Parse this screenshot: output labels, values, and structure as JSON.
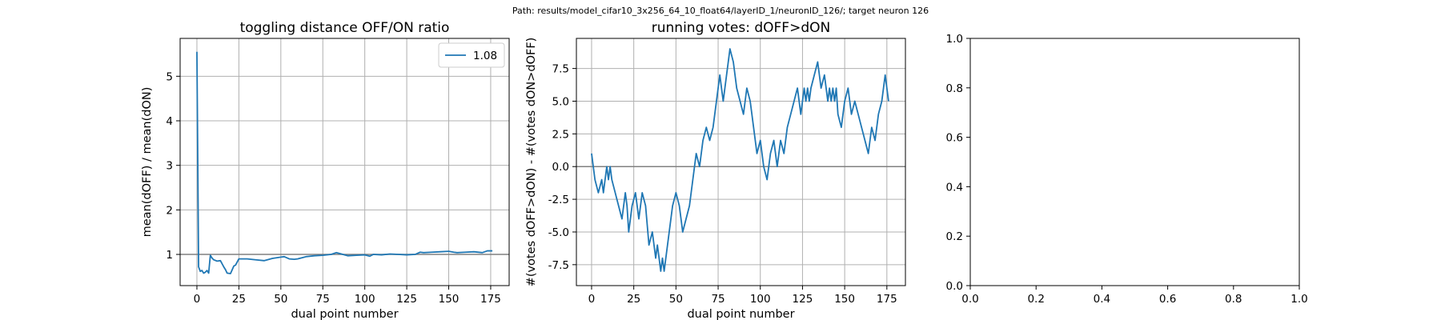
{
  "suptitle": "Path: results/model_cifar10_3x256_64_10_float64/layerID_1/neuronID_126/; target neuron 126",
  "colors": {
    "series": "#1f77b4",
    "refline": "#808080",
    "grid": "#b0b0b0"
  },
  "chart_data": [
    {
      "type": "line",
      "title": "toggling distance OFF/ON ratio",
      "xlabel": "dual point number",
      "ylabel": "mean(dOFF) / mean(dON)",
      "xlim": [
        -10,
        186
      ],
      "ylim": [
        0.3,
        5.85
      ],
      "xticks": [
        0,
        25,
        50,
        75,
        100,
        125,
        150,
        175
      ],
      "yticks": [
        1,
        2,
        3,
        4,
        5
      ],
      "grid": true,
      "legend": {
        "position": "top-right",
        "entries": [
          "1.08"
        ]
      },
      "hline": 1,
      "series": [
        {
          "name": "1.08",
          "x": [
            0,
            1,
            2,
            3,
            4,
            5,
            6,
            7,
            8,
            9,
            10,
            12,
            14,
            16,
            17,
            18,
            20,
            22,
            23,
            25,
            30,
            35,
            40,
            45,
            50,
            52,
            55,
            58,
            60,
            65,
            70,
            75,
            80,
            83,
            85,
            88,
            90,
            95,
            100,
            103,
            105,
            110,
            115,
            120,
            125,
            130,
            133,
            135,
            140,
            145,
            150,
            153,
            155,
            160,
            165,
            170,
            173,
            176
          ],
          "y": [
            5.55,
            0.72,
            0.62,
            0.64,
            0.58,
            0.6,
            0.64,
            0.58,
            0.98,
            0.92,
            0.88,
            0.85,
            0.86,
            0.72,
            0.66,
            0.58,
            0.57,
            0.74,
            0.76,
            0.9,
            0.9,
            0.88,
            0.86,
            0.91,
            0.94,
            0.95,
            0.9,
            0.89,
            0.9,
            0.95,
            0.97,
            0.98,
            1.0,
            1.04,
            1.02,
            0.99,
            0.97,
            0.98,
            0.99,
            0.96,
            1.0,
            0.99,
            1.01,
            1.0,
            0.99,
            1.0,
            1.05,
            1.04,
            1.05,
            1.06,
            1.07,
            1.05,
            1.04,
            1.05,
            1.06,
            1.04,
            1.08,
            1.08
          ]
        }
      ]
    },
    {
      "type": "line",
      "title": "running votes: dOFF>dON",
      "xlabel": "dual point number",
      "ylabel": "#(votes dOFF>dON) - #(votes dON>dOFF)",
      "xlim": [
        -9,
        186
      ],
      "ylim": [
        -9.1,
        9.8
      ],
      "xticks": [
        0,
        25,
        50,
        75,
        100,
        125,
        150,
        175
      ],
      "yticks": [
        -7.5,
        -5.0,
        -2.5,
        0.0,
        2.5,
        5.0,
        7.5
      ],
      "grid": true,
      "hline": 0,
      "series": [
        {
          "name": "",
          "x": [
            0,
            2,
            4,
            6,
            7,
            8,
            9,
            10,
            11,
            12,
            14,
            16,
            18,
            20,
            21,
            22,
            24,
            26,
            27,
            28,
            30,
            32,
            34,
            36,
            37,
            38,
            39,
            40,
            41,
            42,
            43,
            44,
            46,
            48,
            50,
            52,
            54,
            56,
            58,
            60,
            62,
            64,
            66,
            68,
            70,
            72,
            74,
            76,
            78,
            80,
            82,
            84,
            86,
            88,
            90,
            92,
            94,
            96,
            98,
            100,
            102,
            104,
            106,
            108,
            110,
            112,
            114,
            116,
            118,
            120,
            122,
            124,
            125,
            126,
            127,
            128,
            129,
            130,
            132,
            134,
            136,
            138,
            140,
            141,
            142,
            143,
            144,
            145,
            146,
            148,
            150,
            152,
            154,
            156,
            158,
            160,
            162,
            164,
            166,
            168,
            170,
            172,
            174,
            176
          ],
          "y": [
            1,
            -1,
            -2,
            -1,
            -2,
            -1,
            0,
            -1,
            0,
            -1,
            -2,
            -3,
            -4,
            -2,
            -3,
            -5,
            -3,
            -2,
            -3,
            -4,
            -2,
            -3,
            -6,
            -5,
            -6,
            -7,
            -6,
            -7,
            -8,
            -7,
            -8,
            -7,
            -5,
            -3,
            -2,
            -3,
            -5,
            -4,
            -3,
            -1,
            1,
            0,
            2,
            3,
            2,
            3,
            5,
            7,
            5,
            7,
            9,
            8,
            6,
            5,
            4,
            6,
            5,
            3,
            1,
            2,
            0,
            -1,
            1,
            2,
            0,
            2,
            1,
            3,
            4,
            5,
            6,
            4,
            5,
            6,
            5,
            6,
            5,
            6,
            7,
            8,
            6,
            7,
            5,
            6,
            5,
            6,
            5,
            6,
            4,
            3,
            5,
            6,
            4,
            5,
            4,
            3,
            2,
            1,
            3,
            2,
            4,
            5,
            7,
            5
          ]
        }
      ]
    },
    {
      "type": "line",
      "title": "",
      "xlabel": "",
      "ylabel": "",
      "xlim": [
        0,
        1
      ],
      "ylim": [
        0,
        1
      ],
      "xticks": [
        0.0,
        0.2,
        0.4,
        0.6,
        0.8,
        1.0
      ],
      "yticks": [
        0.0,
        0.2,
        0.4,
        0.6,
        0.8,
        1.0
      ],
      "grid": false,
      "series": []
    }
  ]
}
